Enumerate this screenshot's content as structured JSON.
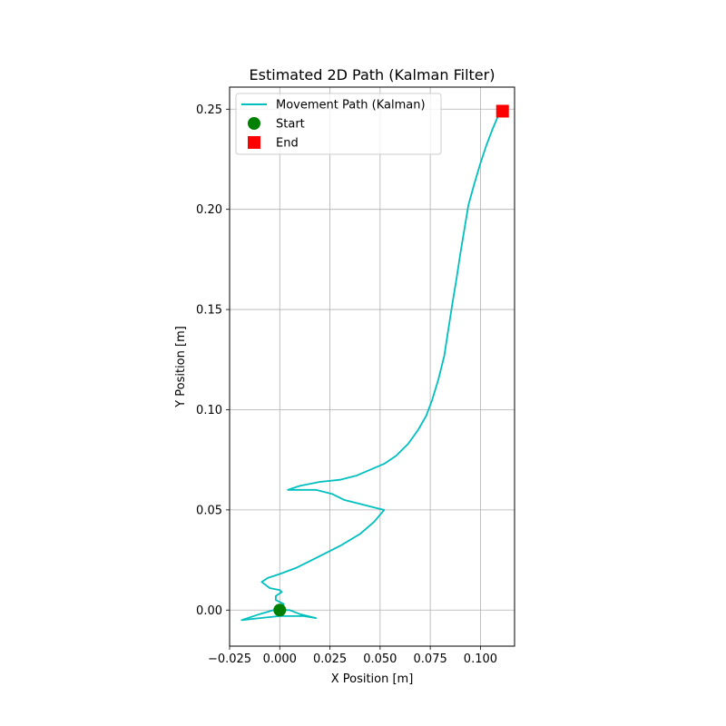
{
  "chart_data": {
    "type": "line",
    "title": "Estimated 2D Path (Kalman Filter)",
    "xlabel": "X Position [m]",
    "ylabel": "Y Position [m]",
    "xlim": [
      -0.025,
      0.117
    ],
    "ylim": [
      -0.018,
      0.261
    ],
    "xticks": [
      -0.025,
      0.0,
      0.025,
      0.05,
      0.075,
      0.1
    ],
    "xtick_labels": [
      "−0.025",
      "0.000",
      "0.025",
      "0.050",
      "0.075",
      "0.100"
    ],
    "yticks": [
      0.0,
      0.05,
      0.1,
      0.15,
      0.2,
      0.25
    ],
    "ytick_labels": [
      "0.00",
      "0.05",
      "0.10",
      "0.15",
      "0.20",
      "0.25"
    ],
    "grid": true,
    "legend_position": "top-left",
    "series": [
      {
        "name": "Movement Path (Kalman)",
        "kind": "line",
        "color": "#00bfbf",
        "x": [
          0.0,
          0.005,
          0.01,
          0.014,
          0.018,
          0.012,
          0.005,
          0.0,
          -0.01,
          -0.019,
          -0.01,
          -0.003,
          0.0,
          0.002,
          -0.002,
          -0.002,
          0.001,
          0.0,
          -0.005,
          -0.009,
          -0.006,
          0.0,
          0.008,
          0.018,
          0.03,
          0.04,
          0.047,
          0.052,
          0.048,
          0.04,
          0.032,
          0.03,
          0.026,
          0.018,
          0.01,
          0.004,
          0.01,
          0.02,
          0.03,
          0.038,
          0.045,
          0.052,
          0.058,
          0.064,
          0.069,
          0.073,
          0.076,
          0.079,
          0.082,
          0.084,
          0.086,
          0.088,
          0.09,
          0.092,
          0.094,
          0.097,
          0.1,
          0.103,
          0.106,
          0.109,
          0.111
        ],
        "y": [
          0.0,
          0.0,
          -0.002,
          -0.003,
          -0.004,
          -0.003,
          -0.003,
          -0.003,
          -0.004,
          -0.005,
          -0.002,
          0.0,
          0.001,
          0.003,
          0.005,
          0.007,
          0.009,
          0.01,
          0.011,
          0.014,
          0.016,
          0.018,
          0.021,
          0.026,
          0.032,
          0.038,
          0.044,
          0.05,
          0.051,
          0.053,
          0.055,
          0.056,
          0.058,
          0.06,
          0.06,
          0.06,
          0.062,
          0.064,
          0.065,
          0.067,
          0.07,
          0.073,
          0.077,
          0.083,
          0.09,
          0.097,
          0.105,
          0.115,
          0.127,
          0.14,
          0.153,
          0.165,
          0.178,
          0.19,
          0.202,
          0.213,
          0.223,
          0.232,
          0.24,
          0.247,
          0.249
        ]
      },
      {
        "name": "Start",
        "kind": "marker",
        "shape": "circle",
        "color": "#008000",
        "x": [
          0.0
        ],
        "y": [
          0.0
        ]
      },
      {
        "name": "End",
        "kind": "marker",
        "shape": "square",
        "color": "#ff0000",
        "x": [
          0.111
        ],
        "y": [
          0.249
        ]
      }
    ]
  }
}
